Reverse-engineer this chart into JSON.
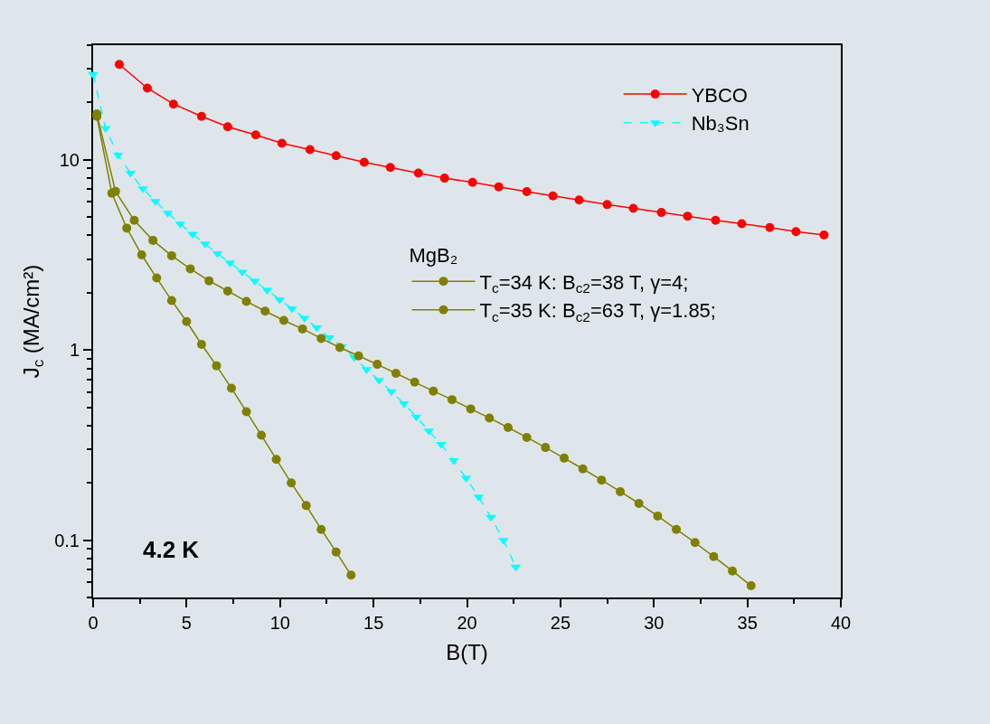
{
  "chart_data": {
    "type": "line",
    "xlabel": "B(T)",
    "ylabel": "J$_{c}$ (MA/cm²)",
    "legend_title": "MgB₂",
    "annotations": [
      "4.2 K"
    ],
    "xlim": [
      0,
      40
    ],
    "xticks": [
      0,
      {
        "value": 2.5,
        "label": null
      },
      5,
      {
        "value": 7.5,
        "label": null
      },
      10,
      {
        "value": 12.5,
        "label": null
      },
      15,
      {
        "value": 17.5,
        "label": null
      },
      20,
      {
        "value": 22.5,
        "label": null
      },
      25,
      {
        "value": 27.5,
        "label": null
      },
      30,
      {
        "value": 32.5,
        "label": null
      },
      35,
      {
        "value": 37.5,
        "label": null
      },
      40
    ],
    "ylim": [
      0.05,
      40
    ],
    "yticks": [
      {
        "value": 0.05,
        "label": null
      },
      {
        "value": 0.06,
        "label": null
      },
      {
        "value": 0.07,
        "label": null
      },
      {
        "value": 0.08,
        "label": null
      },
      {
        "value": 0.09,
        "label": null
      },
      0.1,
      {
        "value": 0.2,
        "label": null
      },
      {
        "value": 0.3,
        "label": null
      },
      {
        "value": 0.4,
        "label": null
      },
      {
        "value": 0.5,
        "label": null
      },
      {
        "value": 0.6,
        "label": null
      },
      {
        "value": 0.7,
        "label": null
      },
      {
        "value": 0.8,
        "label": null
      },
      {
        "value": 0.9,
        "label": null
      },
      1,
      {
        "value": 2,
        "label": null
      },
      {
        "value": 3,
        "label": null
      },
      {
        "value": 4,
        "label": null
      },
      {
        "value": 5,
        "label": null
      },
      {
        "value": 6,
        "label": null
      },
      {
        "value": 7,
        "label": null
      },
      {
        "value": 8,
        "label": null
      },
      {
        "value": 9,
        "label": null
      },
      10,
      {
        "value": 20,
        "label": null
      },
      {
        "value": 30,
        "label": null
      },
      {
        "value": 40,
        "label": null
      }
    ],
    "log": "y",
    "grid": false,
    "legend": "top right",
    "series": [
      {
        "name": "YBCO",
        "color": "#ff0000",
        "marker": "circle",
        "line_style": "solid",
        "x": [
          1.4,
          2.9,
          4.3,
          5.8,
          7.2,
          8.7,
          10.1,
          11.6,
          13.0,
          14.5,
          15.9,
          17.4,
          18.8,
          20.3,
          21.7,
          23.2,
          24.6,
          26.0,
          27.5,
          28.9,
          30.4,
          31.8,
          33.3,
          34.7,
          36.2,
          37.6,
          39.1
        ],
        "values": [
          31.7,
          23.8,
          19.6,
          16.9,
          14.9,
          13.5,
          12.2,
          11.3,
          10.5,
          9.7,
          9.1,
          8.5,
          8.0,
          7.6,
          7.2,
          6.8,
          6.45,
          6.14,
          5.81,
          5.55,
          5.28,
          5.05,
          4.8,
          4.61,
          4.4,
          4.19,
          4.02
        ]
      },
      {
        "name": "Nb₃Sn",
        "color": "#00ffff",
        "marker": "triangle",
        "line_style": "dashed",
        "x": [
          0,
          0.67,
          1.33,
          2.0,
          2.66,
          3.33,
          3.99,
          4.66,
          5.32,
          5.99,
          6.65,
          7.32,
          7.98,
          8.65,
          9.31,
          9.98,
          10.64,
          11.31,
          11.97,
          12.64,
          13.3,
          13.97,
          14.63,
          15.3,
          15.96,
          16.63,
          17.29,
          17.96,
          18.62,
          19.29,
          19.95,
          20.62,
          21.28,
          21.95,
          22.61
        ],
        "values": [
          28.1,
          14.6,
          10.6,
          8.5,
          7.04,
          6.04,
          5.24,
          4.6,
          4.07,
          3.61,
          3.21,
          2.87,
          2.57,
          2.3,
          2.06,
          1.84,
          1.65,
          1.47,
          1.31,
          1.16,
          1.04,
          0.914,
          0.789,
          0.693,
          0.604,
          0.522,
          0.445,
          0.375,
          0.319,
          0.262,
          0.212,
          0.169,
          0.132,
          0.1,
          0.0724
        ]
      },
      {
        "name": "T$_{c}$=34 K: B$_{c2}$=38 T, γ=4;",
        "color": "#808000",
        "marker": "circle",
        "line_style": "solid",
        "x": [
          0.2,
          1.0,
          1.8,
          2.6,
          3.4,
          4.2,
          5.0,
          5.8,
          6.6,
          7.4,
          8.2,
          9.0,
          9.8,
          10.6,
          11.4,
          12.2,
          13.0,
          13.8
        ],
        "values": [
          16.9,
          6.67,
          4.37,
          3.16,
          2.39,
          1.82,
          1.41,
          1.07,
          0.826,
          0.629,
          0.474,
          0.356,
          0.266,
          0.2,
          0.152,
          0.114,
          0.0867,
          0.0655
        ]
      },
      {
        "name": "T$_{c}$=35 K: B$_{c2}$=63 T, γ=1.85;",
        "color": "#808000",
        "marker": "circle",
        "line_style": "solid",
        "x": [
          0.2,
          1.2,
          2.2,
          3.2,
          4.2,
          5.2,
          6.2,
          7.2,
          8.2,
          9.2,
          10.2,
          11.2,
          12.2,
          13.2,
          14.2,
          15.2,
          16.2,
          17.2,
          18.2,
          19.2,
          20.2,
          21.2,
          22.2,
          23.2,
          24.2,
          25.2,
          26.2,
          27.2,
          28.2,
          29.2,
          30.2,
          31.2,
          32.2,
          33.2,
          34.2,
          35.2
        ],
        "values": [
          17.4,
          6.81,
          4.8,
          3.77,
          3.13,
          2.67,
          2.31,
          2.04,
          1.8,
          1.6,
          1.43,
          1.29,
          1.15,
          1.03,
          0.931,
          0.84,
          0.754,
          0.677,
          0.608,
          0.548,
          0.49,
          0.439,
          0.391,
          0.347,
          0.307,
          0.27,
          0.237,
          0.207,
          0.18,
          0.156,
          0.134,
          0.114,
          0.0972,
          0.082,
          0.0689,
          0.0576
        ]
      }
    ]
  }
}
